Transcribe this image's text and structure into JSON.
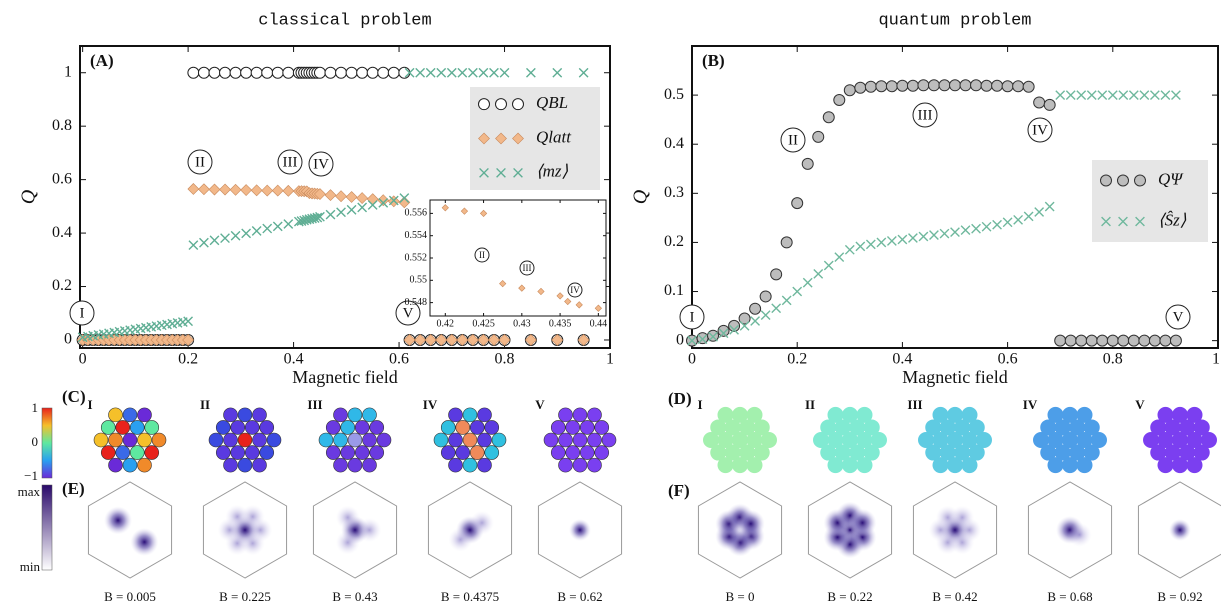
{
  "figure": {
    "left_title": "classical problem",
    "right_title": "quantum problem",
    "panel_C": {
      "label": "(C)",
      "items": [
        "I",
        "II",
        "III",
        "IV",
        "V"
      ],
      "colorbar_ticks": [
        "1",
        "0",
        "−1"
      ]
    },
    "panel_D": {
      "label": "(D)",
      "items": [
        "I",
        "II",
        "III",
        "IV",
        "V"
      ],
      "colors": [
        "#a3f0ae",
        "#80ead2",
        "#5fcbe2",
        "#4d9ee8",
        "#7b3ff0"
      ]
    },
    "panel_E": {
      "label": "(E)",
      "colorbar_ticks": [
        "max",
        "min"
      ],
      "fields": [
        "B = 0.005",
        "B = 0.225",
        "B = 0.43",
        "B = 0.4375",
        "B = 0.62"
      ]
    },
    "panel_F": {
      "label": "(F)",
      "fields": [
        "B = 0",
        "B = 0.22",
        "B = 0.42",
        "B = 0.68",
        "B = 0.92"
      ]
    }
  },
  "chart_data": [
    {
      "type": "scatter",
      "panel_label": "(A)",
      "xlabel": "Magnetic field",
      "ylabel": "Q",
      "x": [
        0,
        0.01,
        0.02,
        0.03,
        0.04,
        0.05,
        0.06,
        0.07,
        0.08,
        0.09,
        0.1,
        0.11,
        0.12,
        0.13,
        0.14,
        0.15,
        0.16,
        0.17,
        0.18,
        0.19,
        0.2,
        0.21,
        0.23,
        0.25,
        0.27,
        0.29,
        0.31,
        0.33,
        0.35,
        0.37,
        0.39,
        0.41,
        0.415,
        0.42,
        0.425,
        0.43,
        0.435,
        0.44,
        0.445,
        0.45,
        0.47,
        0.49,
        0.51,
        0.53,
        0.55,
        0.57,
        0.59,
        0.61,
        0.62,
        0.64,
        0.66,
        0.68,
        0.7,
        0.72,
        0.74,
        0.76,
        0.78,
        0.8,
        0.85,
        0.9,
        0.95
      ],
      "series": [
        {
          "name": "QBL",
          "color": "#222222",
          "marker": "circle-open",
          "values": [
            0,
            0,
            0,
            0,
            0,
            0,
            0,
            0,
            0,
            0,
            0,
            0,
            0,
            0,
            0,
            0,
            0,
            0,
            0,
            0,
            0,
            1,
            1,
            1,
            1,
            1,
            1,
            1,
            1,
            1,
            1,
            1,
            1,
            1,
            1,
            1,
            1,
            1,
            1,
            1,
            1,
            1,
            1,
            1,
            1,
            1,
            1,
            1,
            0,
            0,
            0,
            0,
            0,
            0,
            0,
            0,
            0,
            0,
            0,
            0,
            0
          ]
        },
        {
          "name": "Qlatt",
          "color": "#f2b88a",
          "marker": "diamond",
          "values": [
            0,
            0,
            0,
            0,
            0,
            0,
            0,
            0,
            0,
            0,
            0,
            0,
            0,
            0,
            0,
            0,
            0,
            0,
            0,
            0,
            0,
            0.565,
            0.564,
            0.563,
            0.563,
            0.562,
            0.561,
            0.56,
            0.559,
            0.559,
            0.558,
            0.557,
            0.557,
            0.5565,
            0.556,
            0.5495,
            0.5485,
            0.548,
            0.547,
            0.546,
            0.542,
            0.538,
            0.535,
            0.531,
            0.527,
            0.523,
            0.519,
            0.515,
            0,
            0,
            0,
            0,
            0,
            0,
            0,
            0,
            0,
            0,
            0,
            0,
            0
          ]
        },
        {
          "name": "⟨mz⟩",
          "color": "#5fae94",
          "marker": "x",
          "values": [
            0.01,
            0.013,
            0.016,
            0.019,
            0.022,
            0.025,
            0.028,
            0.031,
            0.034,
            0.037,
            0.04,
            0.043,
            0.046,
            0.049,
            0.052,
            0.055,
            0.058,
            0.061,
            0.064,
            0.067,
            0.07,
            0.355,
            0.364,
            0.373,
            0.381,
            0.39,
            0.399,
            0.408,
            0.417,
            0.425,
            0.434,
            0.443,
            0.445,
            0.447,
            0.45,
            0.452,
            0.454,
            0.456,
            0.458,
            0.461,
            0.469,
            0.478,
            0.487,
            0.496,
            0.505,
            0.513,
            0.522,
            0.531,
            1,
            1,
            1,
            1,
            1,
            1,
            1,
            1,
            1,
            1,
            1,
            1,
            1
          ]
        }
      ],
      "xlim": [
        -0.005,
        1
      ],
      "ylim": [
        -0.03,
        1.1
      ],
      "xticks": [
        0,
        0.2,
        0.4,
        0.6,
        0.8,
        1
      ],
      "yticks": [
        0,
        0.2,
        0.4,
        0.6,
        0.8,
        1
      ],
      "legend": "upper right",
      "annotations": [
        "I",
        "II",
        "III",
        "IV",
        "V"
      ]
    },
    {
      "type": "scatter",
      "x": [
        0.42,
        0.4225,
        0.425,
        0.4275,
        0.43,
        0.4325,
        0.435,
        0.436,
        0.4375,
        0.44
      ],
      "series": [
        {
          "color": "#f2b88a",
          "marker": "diamond",
          "values": [
            0.5565,
            0.5562,
            0.556,
            0.5497,
            0.5493,
            0.549,
            0.5486,
            0.5481,
            0.5478,
            0.5475
          ]
        }
      ],
      "xlim": [
        0.418,
        0.441
      ],
      "ylim": [
        0.5468,
        0.5572
      ],
      "xticks": [
        0.42,
        0.425,
        0.43,
        0.435,
        0.44
      ],
      "yticks": [
        0.548,
        0.55,
        0.552,
        0.554,
        0.556
      ],
      "annotations": [
        "II",
        "III",
        "IV"
      ]
    },
    {
      "type": "scatter",
      "panel_label": "(B)",
      "xlabel": "Magnetic field",
      "ylabel": "Q",
      "x": [
        0,
        0.02,
        0.04,
        0.06,
        0.08,
        0.1,
        0.12,
        0.14,
        0.16,
        0.18,
        0.2,
        0.22,
        0.24,
        0.26,
        0.28,
        0.3,
        0.32,
        0.34,
        0.36,
        0.38,
        0.4,
        0.42,
        0.44,
        0.46,
        0.48,
        0.5,
        0.52,
        0.54,
        0.56,
        0.58,
        0.6,
        0.62,
        0.64,
        0.66,
        0.68,
        0.7,
        0.72,
        0.74,
        0.76,
        0.78,
        0.8,
        0.82,
        0.84,
        0.86,
        0.88,
        0.9,
        0.92
      ],
      "series": [
        {
          "name": "QΨ",
          "color": "#bdbdbd",
          "marker": "circle-filled",
          "values": [
            0,
            0.005,
            0.01,
            0.02,
            0.03,
            0.045,
            0.065,
            0.09,
            0.135,
            0.2,
            0.28,
            0.36,
            0.415,
            0.455,
            0.49,
            0.51,
            0.515,
            0.517,
            0.518,
            0.518,
            0.519,
            0.519,
            0.52,
            0.52,
            0.52,
            0.52,
            0.52,
            0.52,
            0.519,
            0.519,
            0.518,
            0.518,
            0.517,
            0.485,
            0.48,
            0,
            0,
            0,
            0,
            0,
            0,
            0,
            0,
            0,
            0,
            0,
            0
          ]
        },
        {
          "name": "⟨Ŝz⟩",
          "color": "#6fb89d",
          "marker": "x",
          "values": [
            0,
            0.003,
            0.008,
            0.015,
            0.022,
            0.03,
            0.04,
            0.052,
            0.066,
            0.082,
            0.1,
            0.118,
            0.136,
            0.153,
            0.17,
            0.185,
            0.192,
            0.196,
            0.2,
            0.203,
            0.206,
            0.209,
            0.212,
            0.215,
            0.218,
            0.221,
            0.225,
            0.228,
            0.232,
            0.236,
            0.241,
            0.246,
            0.253,
            0.262,
            0.273,
            0.5,
            0.5,
            0.5,
            0.5,
            0.5,
            0.5,
            0.5,
            0.5,
            0.5,
            0.5,
            0.5,
            0.5
          ]
        }
      ],
      "xlim": [
        0,
        1
      ],
      "ylim": [
        -0.015,
        0.6
      ],
      "xticks": [
        0,
        0.2,
        0.4,
        0.6,
        0.8,
        1
      ],
      "yticks": [
        0,
        0.1,
        0.2,
        0.3,
        0.4,
        0.5
      ],
      "legend": "center right",
      "annotations": [
        "I",
        "II",
        "III",
        "IV",
        "V"
      ]
    }
  ]
}
